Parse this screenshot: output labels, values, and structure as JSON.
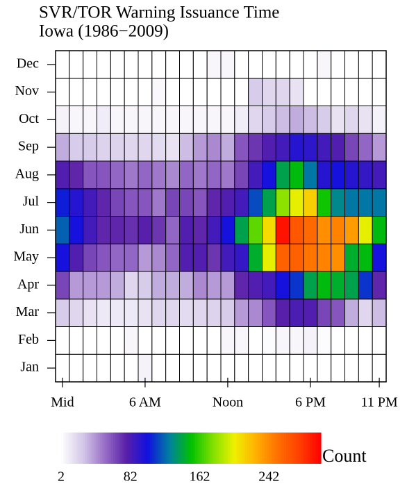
{
  "chart_data": {
    "type": "heatmap",
    "title": "SVR/TOR Warning Issuance Time",
    "subtitle": "Iowa (1986−2009)",
    "x": [
      0,
      1,
      2,
      3,
      4,
      5,
      6,
      7,
      8,
      9,
      10,
      11,
      12,
      13,
      14,
      15,
      16,
      17,
      18,
      19,
      20,
      21,
      22,
      23
    ],
    "xlim": [
      -0.5,
      23.5
    ],
    "xticks": [
      {
        "value": 0,
        "label": "Mid"
      },
      {
        "value": 6,
        "label": "6 AM"
      },
      {
        "value": 12,
        "label": "Noon"
      },
      {
        "value": 18,
        "label": "6 PM"
      },
      {
        "value": 23,
        "label": "11 PM"
      }
    ],
    "categories": [
      "Jan",
      "Feb",
      "Mar",
      "Apr",
      "May",
      "Jun",
      "Jul",
      "Aug",
      "Sep",
      "Oct",
      "Nov",
      "Dec"
    ],
    "z": [
      [
        2,
        2,
        2,
        2,
        2,
        2,
        8,
        2,
        2,
        2,
        2,
        2,
        2,
        2,
        2,
        2,
        2,
        2,
        2,
        2,
        2,
        2,
        2,
        2
      ],
      [
        2,
        2,
        2,
        2,
        2,
        6,
        2,
        2,
        2,
        2,
        2,
        2,
        6,
        6,
        2,
        4,
        6,
        6,
        8,
        4,
        2,
        2,
        2,
        2
      ],
      [
        25,
        20,
        15,
        12,
        12,
        12,
        15,
        20,
        20,
        18,
        20,
        22,
        25,
        40,
        45,
        60,
        78,
        82,
        80,
        65,
        60,
        35,
        20,
        30
      ],
      [
        65,
        40,
        40,
        40,
        35,
        20,
        25,
        35,
        35,
        35,
        45,
        40,
        40,
        75,
        80,
        85,
        100,
        110,
        140,
        150,
        145,
        140,
        110,
        75
      ],
      [
        100,
        80,
        65,
        60,
        55,
        55,
        40,
        45,
        55,
        80,
        80,
        70,
        85,
        90,
        145,
        200,
        260,
        260,
        250,
        245,
        240,
        145,
        150,
        100
      ],
      [
        120,
        100,
        85,
        75,
        75,
        72,
        78,
        70,
        55,
        80,
        75,
        85,
        100,
        140,
        170,
        210,
        295,
        265,
        255,
        240,
        245,
        235,
        200,
        150
      ],
      [
        105,
        95,
        85,
        75,
        65,
        60,
        60,
        50,
        65,
        65,
        60,
        75,
        80,
        85,
        115,
        140,
        180,
        200,
        215,
        155,
        130,
        125,
        125,
        125
      ],
      [
        80,
        75,
        60,
        60,
        55,
        50,
        55,
        50,
        45,
        55,
        50,
        55,
        50,
        65,
        85,
        100,
        140,
        150,
        125,
        95,
        100,
        95,
        90,
        85
      ],
      [
        35,
        25,
        25,
        22,
        22,
        20,
        20,
        18,
        15,
        30,
        40,
        45,
        35,
        60,
        70,
        80,
        85,
        95,
        92,
        85,
        80,
        65,
        55,
        40
      ],
      [
        8,
        6,
        6,
        10,
        6,
        6,
        6,
        6,
        6,
        6,
        6,
        6,
        6,
        10,
        20,
        25,
        30,
        35,
        30,
        25,
        15,
        20,
        15,
        8
      ],
      [
        2,
        2,
        2,
        2,
        2,
        2,
        2,
        5,
        2,
        2,
        2,
        2,
        2,
        2,
        25,
        20,
        20,
        15,
        2,
        2,
        2,
        2,
        2,
        2
      ],
      [
        2,
        2,
        2,
        2,
        2,
        2,
        2,
        2,
        2,
        2,
        2,
        6,
        6,
        2,
        2,
        2,
        2,
        2,
        2,
        6,
        2,
        2,
        2,
        2
      ]
    ],
    "colorscale": [
      "#ffffff",
      "#d4c8e8",
      "#9a70c8",
      "#5a20a8",
      "#1010e0",
      "#0080a0",
      "#00c000",
      "#80e000",
      "#f0f000",
      "#ffb000",
      "#ff7000",
      "#ff4000",
      "#ff0000"
    ],
    "colorbar": {
      "label": "Count",
      "lim": [
        2,
        302
      ],
      "ticks": [
        2,
        82,
        162,
        242
      ]
    }
  }
}
